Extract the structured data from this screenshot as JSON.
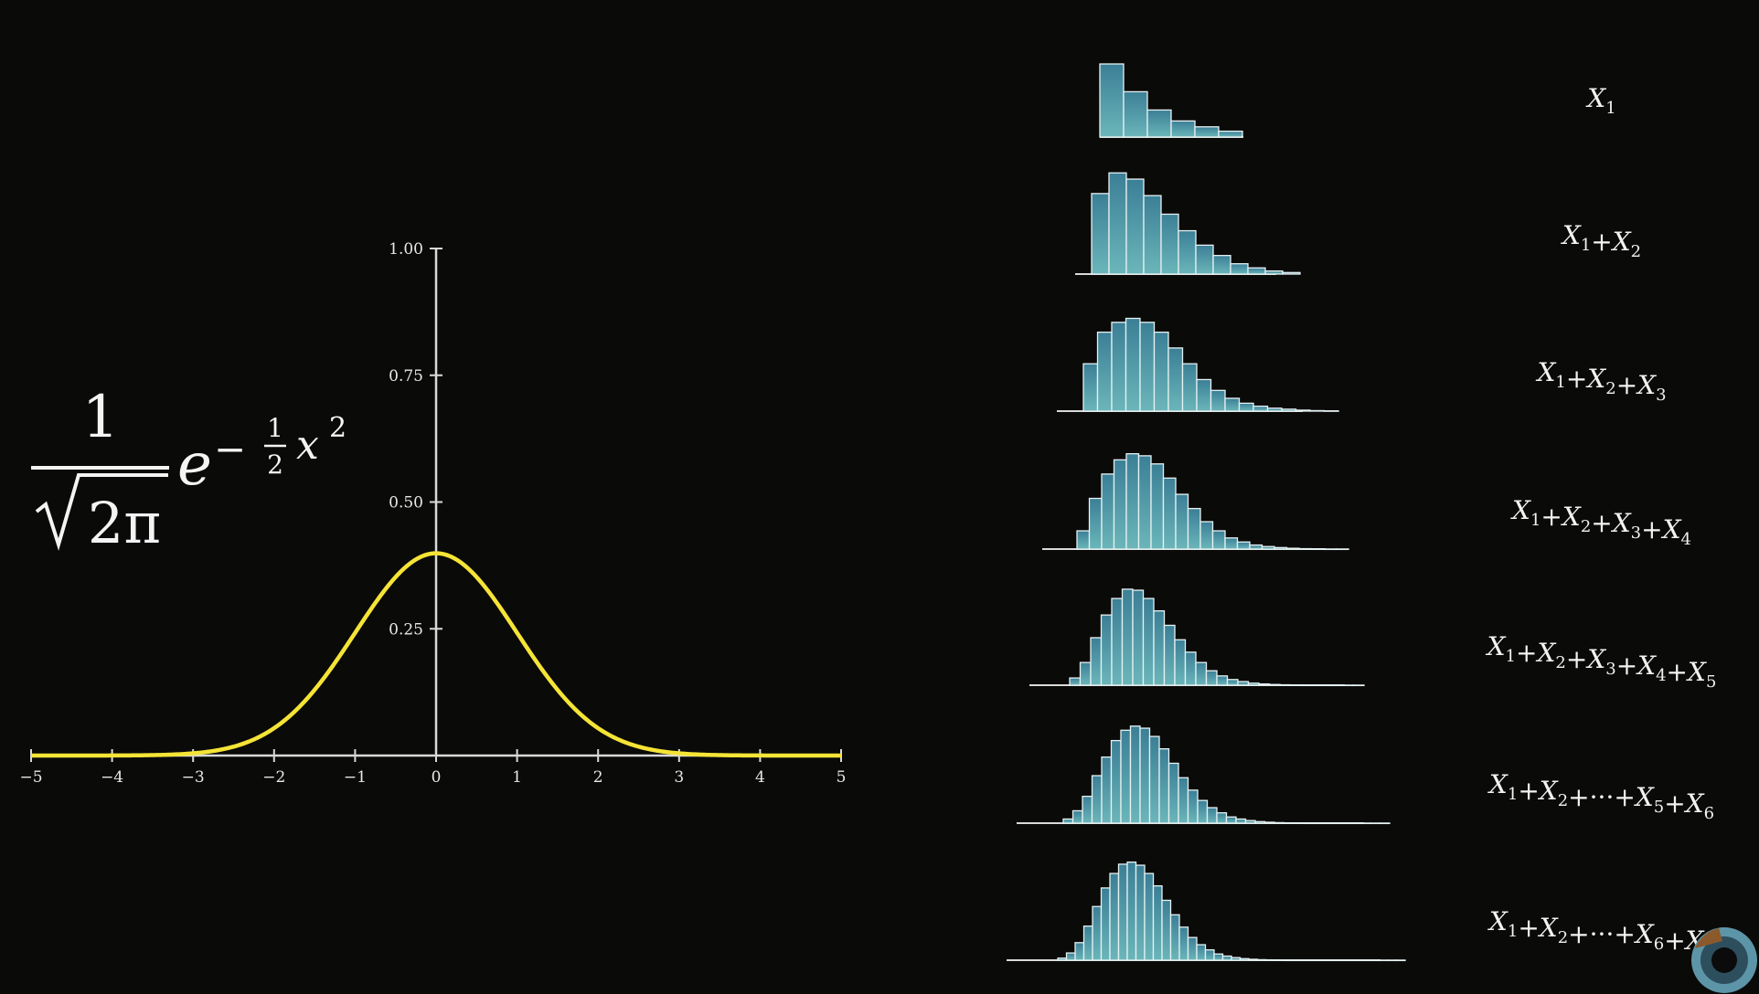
{
  "colors": {
    "background": "#0a0a09",
    "curve": "#f5e436",
    "axis": "#d9d9d9",
    "bar_fill_top": "#3b7f96",
    "bar_fill_bottom": "#6bb6ba",
    "bar_stroke": "#e6f1f1"
  },
  "formula": {
    "numerator": "1",
    "denominator_radicand": "2π",
    "base": "e",
    "exponent_sign": "−",
    "exponent_frac_num": "1",
    "exponent_frac_den": "2",
    "exponent_var": "x",
    "exponent_power": "2"
  },
  "chart_data": [
    {
      "type": "line",
      "function": "standard normal density",
      "x_range": [
        -5,
        5
      ],
      "ylim": [
        0,
        1
      ],
      "x_ticks": [
        "−5",
        "−4",
        "−3",
        "−2",
        "−1",
        "0",
        "1",
        "2",
        "3",
        "4",
        "5"
      ],
      "y_ticks": [
        "0.25",
        "0.50",
        "0.75",
        "1.00"
      ],
      "peak": 0.399,
      "grid": false
    },
    {
      "type": "bar",
      "histograms": [
        {
          "label": "X1",
          "values": [
            1.0,
            0.62,
            0.37,
            0.22,
            0.14,
            0.08
          ]
        },
        {
          "label": "X1+X2",
          "values": [
            0.78,
            0.98,
            0.92,
            0.76,
            0.58,
            0.42,
            0.28,
            0.18,
            0.1,
            0.06,
            0.03,
            0.015
          ]
        },
        {
          "label": "X1+X2+X3",
          "values": [
            0.48,
            0.8,
            0.9,
            0.94,
            0.9,
            0.8,
            0.64,
            0.48,
            0.32,
            0.21,
            0.13,
            0.08,
            0.05,
            0.03,
            0.02,
            0.01,
            0.005,
            0.003
          ]
        },
        {
          "label": "X1+X2+X3+X4",
          "values": [
            0.18,
            0.5,
            0.74,
            0.88,
            0.94,
            0.92,
            0.84,
            0.7,
            0.54,
            0.4,
            0.27,
            0.18,
            0.11,
            0.07,
            0.04,
            0.025,
            0.015,
            0.008,
            0.004,
            0.002,
            0.001,
            0.001
          ]
        },
        {
          "label": "X1+X2+X3+X4+X5",
          "values": [
            0.07,
            0.22,
            0.46,
            0.68,
            0.84,
            0.93,
            0.92,
            0.84,
            0.72,
            0.58,
            0.44,
            0.32,
            0.22,
            0.14,
            0.09,
            0.055,
            0.035,
            0.02,
            0.012,
            0.007,
            0.004,
            0.002,
            0.001,
            0.001,
            0.001,
            0.001,
            0.001,
            0.001
          ]
        },
        {
          "label": "X1+X2+···+X5+X6",
          "values": [
            0.04,
            0.12,
            0.26,
            0.46,
            0.64,
            0.8,
            0.9,
            0.94,
            0.92,
            0.84,
            0.72,
            0.58,
            0.44,
            0.32,
            0.22,
            0.15,
            0.1,
            0.06,
            0.04,
            0.025,
            0.015,
            0.009,
            0.005,
            0.003,
            0.002,
            0.001,
            0.001,
            0.001,
            0.001,
            0.001,
            0.001,
            0.001,
            0.001,
            0.001
          ]
        },
        {
          "label": "X1+X2+···+X6+X7",
          "values": [
            0.02,
            0.07,
            0.17,
            0.33,
            0.52,
            0.7,
            0.84,
            0.93,
            0.95,
            0.92,
            0.84,
            0.72,
            0.58,
            0.44,
            0.32,
            0.22,
            0.15,
            0.1,
            0.06,
            0.04,
            0.025,
            0.015,
            0.009,
            0.005,
            0.003,
            0.002,
            0.001,
            0.001,
            0.001,
            0.001,
            0.001,
            0.001,
            0.001,
            0.001,
            0.001,
            0.001,
            0.001,
            0.001,
            0.001,
            0.001
          ]
        }
      ]
    }
  ]
}
